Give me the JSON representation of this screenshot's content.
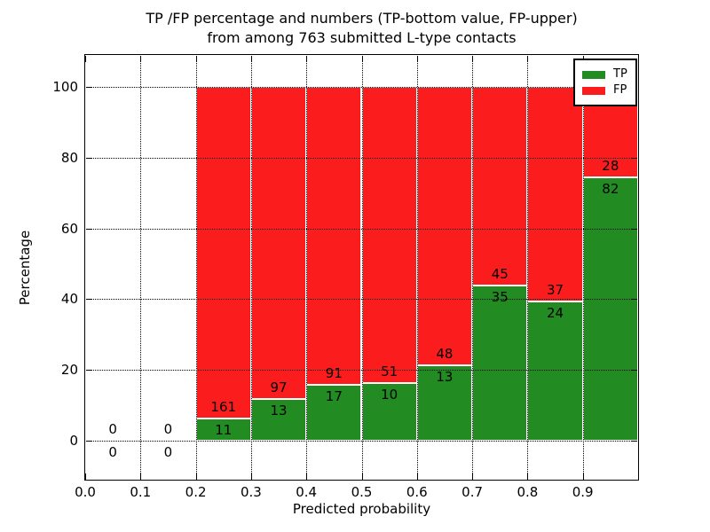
{
  "title": {
    "line1": "TP /FP percentage and numbers (TP-bottom value, FP-upper)",
    "line2": "from among 763 submitted L-type contacts"
  },
  "axes": {
    "xlabel": "Predicted probability",
    "ylabel": "Percentage",
    "x_tick_labels": [
      "0.0",
      "0.1",
      "0.2",
      "0.3",
      "0.4",
      "0.5",
      "0.6",
      "0.7",
      "0.8",
      "0.9"
    ],
    "y_tick_labels": [
      "0",
      "20",
      "40",
      "60",
      "80",
      "100"
    ]
  },
  "legend": {
    "items": [
      {
        "label": "TP",
        "color": "#228b22"
      },
      {
        "label": "FP",
        "color": "#fb1d1d"
      }
    ]
  },
  "chart_data": {
    "type": "bar",
    "stacked": true,
    "normalized": "each non-empty bin scaled to 100%",
    "title": "TP /FP percentage and numbers (TP-bottom value, FP-upper) from among 763 submitted L-type contacts",
    "xlabel": "Predicted probability",
    "ylabel": "Percentage",
    "bin_edges": [
      0.0,
      0.1,
      0.2,
      0.3,
      0.4,
      0.5,
      0.6,
      0.7,
      0.8,
      0.9,
      1.0
    ],
    "categories": [
      "0.0-0.1",
      "0.1-0.2",
      "0.2-0.3",
      "0.3-0.4",
      "0.4-0.5",
      "0.5-0.6",
      "0.6-0.7",
      "0.7-0.8",
      "0.8-0.9",
      "0.9-1.0"
    ],
    "series": [
      {
        "name": "TP",
        "color": "#228b22",
        "counts": [
          0,
          0,
          11,
          13,
          17,
          10,
          13,
          35,
          24,
          82
        ]
      },
      {
        "name": "FP",
        "color": "#fb1d1d",
        "counts": [
          0,
          0,
          161,
          97,
          91,
          51,
          48,
          45,
          37,
          28
        ]
      }
    ],
    "tp_percent_of_bin": [
      null,
      null,
      6.4,
      11.8,
      15.7,
      16.4,
      21.3,
      43.8,
      39.3,
      74.5
    ],
    "total_contacts": 763,
    "xlim": [
      0.0,
      1.0
    ],
    "ylim": [
      -11,
      109
    ],
    "grid": "dotted, both axes, drawn on top of bars",
    "ticks": "inward, all four sides",
    "legend_position": "upper right"
  }
}
